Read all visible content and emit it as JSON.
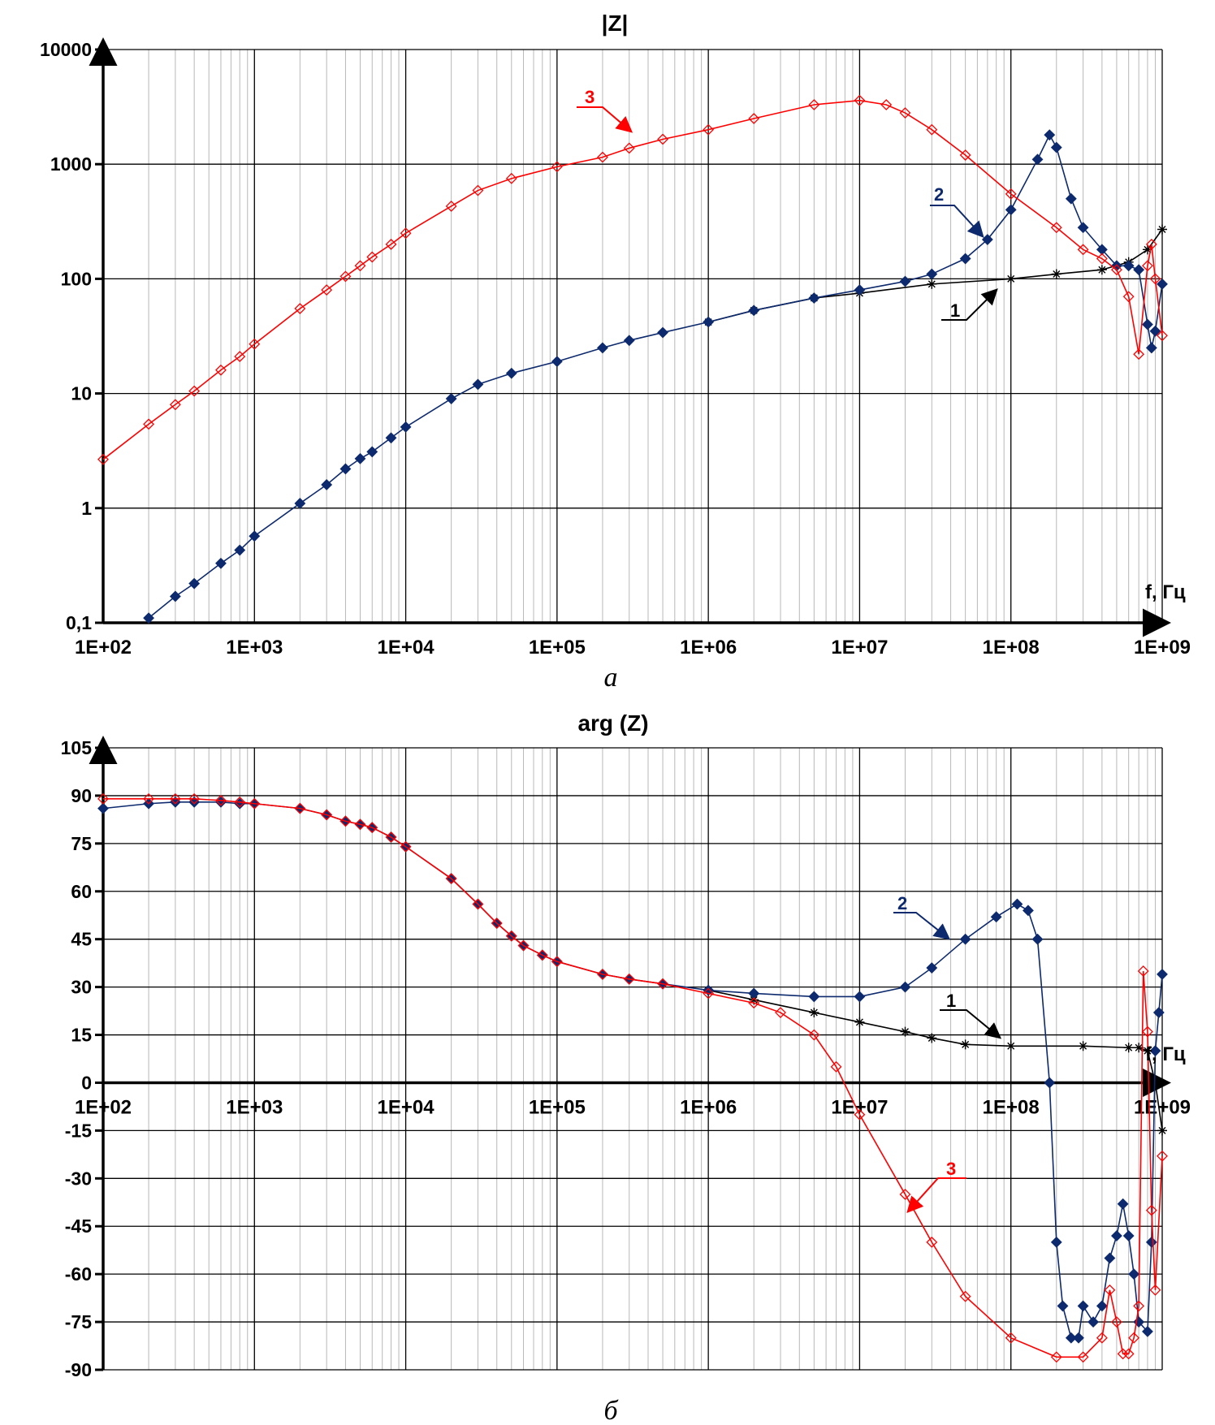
{
  "chart_data": [
    {
      "type": "line",
      "title": "|Z|",
      "caption": "а",
      "xlabel": "f, Гц",
      "ylabel": "",
      "x_scale": "log",
      "y_scale": "log",
      "xlim": [
        100,
        1000000000
      ],
      "ylim": [
        0.1,
        10000
      ],
      "grid": true,
      "x_tick_labels": [
        "1E+02",
        "1E+03",
        "1E+04",
        "1E+05",
        "1E+06",
        "1E+07",
        "1E+08",
        "1E+09"
      ],
      "y_tick_labels": [
        "0,1",
        "1",
        "10",
        "100",
        "1000",
        "10000"
      ],
      "colors": {
        "1": "#000000",
        "2": "#0d2a6e",
        "3": "#ff0000"
      },
      "series": [
        {
          "name": "1",
          "marker": "star",
          "x": [
            1000000.0,
            2000000.0,
            5000000.0,
            10000000.0,
            30000000.0,
            100000000.0,
            200000000.0,
            400000000.0,
            600000000.0,
            800000000.0,
            1000000000.0
          ],
          "y": [
            42,
            53,
            68,
            75,
            90,
            100,
            110,
            120,
            140,
            180,
            270
          ]
        },
        {
          "name": "2",
          "marker": "filled-diamond",
          "x": [
            200,
            300,
            400,
            600,
            800,
            1000.0,
            2000.0,
            3000.0,
            4000.0,
            5000.0,
            6000.0,
            8000.0,
            10000.0,
            20000.0,
            30000.0,
            50000.0,
            100000.0,
            200000.0,
            300000.0,
            500000.0,
            1000000.0,
            2000000.0,
            5000000.0,
            10000000.0,
            20000000.0,
            30000000.0,
            50000000.0,
            70000000.0,
            100000000.0,
            150000000.0,
            180000000.0,
            200000000.0,
            250000000.0,
            300000000.0,
            400000000.0,
            500000000.0,
            600000000.0,
            700000000.0,
            800000000.0,
            850000000.0,
            900000000.0,
            1000000000.0
          ],
          "y": [
            0.11,
            0.17,
            0.22,
            0.33,
            0.43,
            0.57,
            1.1,
            1.6,
            2.2,
            2.7,
            3.1,
            4.1,
            5.1,
            9,
            12,
            15,
            19,
            25,
            29,
            34,
            42,
            53,
            68,
            80,
            95,
            110,
            150,
            220,
            400,
            1100,
            1800,
            1400,
            500,
            280,
            180,
            130,
            130,
            120,
            40,
            25,
            35,
            90
          ]
        },
        {
          "name": "3",
          "marker": "hollow-diamond",
          "x": [
            100,
            200,
            300,
            400,
            600,
            800,
            1000.0,
            2000.0,
            3000.0,
            4000.0,
            5000.0,
            6000.0,
            8000.0,
            10000.0,
            20000.0,
            30000.0,
            50000.0,
            100000.0,
            200000.0,
            300000.0,
            500000.0,
            1000000.0,
            2000000.0,
            5000000.0,
            10000000.0,
            15000000.0,
            20000000.0,
            30000000.0,
            50000000.0,
            100000000.0,
            200000000.0,
            300000000.0,
            400000000.0,
            500000000.0,
            600000000.0,
            700000000.0,
            800000000.0,
            850000000.0,
            900000000.0,
            1000000000.0
          ],
          "y": [
            2.66,
            5.4,
            8,
            10.5,
            16,
            21,
            27,
            55,
            80,
            105,
            130,
            155,
            200,
            250,
            430,
            590,
            750,
            950,
            1150,
            1380,
            1650,
            2000,
            2500,
            3300,
            3600,
            3300,
            2800,
            2000,
            1200,
            550,
            280,
            180,
            150,
            120,
            70,
            22,
            130,
            200,
            100,
            32
          ]
        }
      ]
    },
    {
      "type": "line",
      "title": "arg (Z)",
      "caption": "б",
      "xlabel": "f, Гц",
      "ylabel": "",
      "x_scale": "log",
      "xlim": [
        100,
        1000000000
      ],
      "ylim": [
        -90,
        105
      ],
      "grid": true,
      "x_tick_labels": [
        "1E+02",
        "1E+03",
        "1E+04",
        "1E+05",
        "1E+06",
        "1E+07",
        "1E+08",
        "1E+09"
      ],
      "y_tick_labels": [
        "105",
        "90",
        "75",
        "60",
        "45",
        "30",
        "15",
        "0",
        "-15",
        "-30",
        "-45",
        "-60",
        "-75",
        "-90"
      ],
      "colors": {
        "1": "#000000",
        "2": "#0d2a6e",
        "3": "#ff0000"
      },
      "series": [
        {
          "name": "1",
          "marker": "star",
          "x": [
            1000000.0,
            2000000.0,
            5000000.0,
            10000000.0,
            20000000.0,
            30000000.0,
            50000000.0,
            100000000.0,
            300000000.0,
            600000000.0,
            700000000.0,
            800000000.0,
            900000000.0,
            1000000000.0
          ],
          "y": [
            29,
            26,
            22,
            19,
            16,
            14,
            12,
            11.5,
            11.5,
            11,
            11,
            10,
            0,
            -15
          ]
        },
        {
          "name": "2",
          "marker": "filled-diamond",
          "x": [
            100,
            200,
            300,
            400,
            600,
            800,
            1000.0,
            2000.0,
            3000.0,
            4000.0,
            5000.0,
            6000.0,
            8000.0,
            10000.0,
            20000.0,
            30000.0,
            40000.0,
            50000.0,
            60000.0,
            80000.0,
            100000.0,
            200000.0,
            300000.0,
            500000.0,
            1000000.0,
            2000000.0,
            5000000.0,
            10000000.0,
            20000000.0,
            30000000.0,
            50000000.0,
            80000000.0,
            110000000.0,
            130000000.0,
            150000000.0,
            180000000.0,
            200000000.0,
            220000000.0,
            250000000.0,
            280000000.0,
            300000000.0,
            350000000.0,
            400000000.0,
            450000000.0,
            500000000.0,
            550000000.0,
            600000000.0,
            650000000.0,
            700000000.0,
            800000000.0,
            850000000.0,
            900000000.0,
            950000000.0,
            1000000000.0
          ],
          "y": [
            86,
            87.5,
            88,
            88,
            88,
            87.5,
            87.5,
            86,
            84,
            82,
            81,
            80,
            77,
            74,
            64,
            56,
            50,
            46,
            43,
            40,
            38,
            34,
            32.5,
            31,
            29,
            28,
            27,
            27,
            30,
            36,
            45,
            52,
            56,
            54,
            45,
            0,
            -50,
            -70,
            -80,
            -80,
            -70,
            -75,
            -70,
            -55,
            -48,
            -38,
            -48,
            -60,
            -75,
            -78,
            -50,
            10,
            22,
            34
          ]
        },
        {
          "name": "3",
          "marker": "hollow-diamond",
          "x": [
            100,
            200,
            300,
            400,
            600,
            800,
            1000.0,
            2000.0,
            3000.0,
            4000.0,
            5000.0,
            6000.0,
            8000.0,
            10000.0,
            20000.0,
            30000.0,
            40000.0,
            50000.0,
            60000.0,
            80000.0,
            100000.0,
            200000.0,
            300000.0,
            500000.0,
            1000000.0,
            2000000.0,
            3000000.0,
            5000000.0,
            7000000.0,
            10000000.0,
            20000000.0,
            30000000.0,
            50000000.0,
            100000000.0,
            200000000.0,
            300000000.0,
            400000000.0,
            450000000.0,
            500000000.0,
            550000000.0,
            600000000.0,
            650000000.0,
            700000000.0,
            750000000.0,
            800000000.0,
            850000000.0,
            900000000.0,
            1000000000.0
          ],
          "y": [
            89,
            89,
            89,
            89,
            88.5,
            88,
            87.5,
            86,
            84,
            82,
            81,
            80,
            77,
            74,
            64,
            56,
            50,
            46,
            43,
            40,
            38,
            34,
            32.5,
            31,
            28,
            25,
            22,
            15,
            5,
            -10,
            -35,
            -50,
            -67,
            -80,
            -86,
            -86,
            -80,
            -65,
            -75,
            -85,
            -85,
            -80,
            -70,
            35,
            16,
            -40,
            -65,
            -23
          ]
        }
      ]
    }
  ]
}
